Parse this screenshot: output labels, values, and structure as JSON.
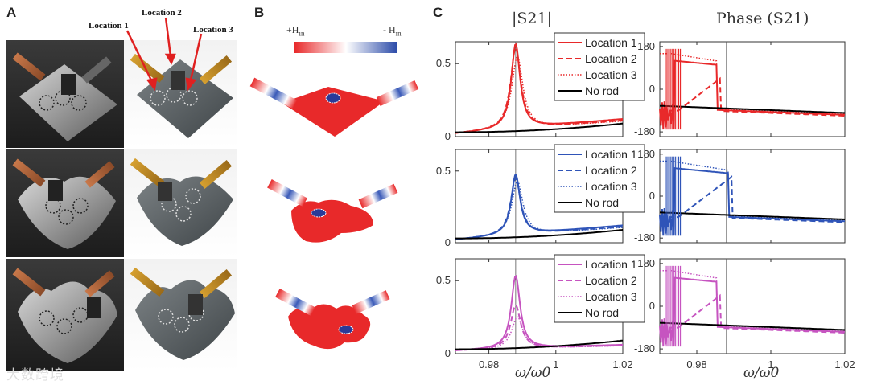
{
  "panels": {
    "a": "A",
    "b": "B",
    "c": "C"
  },
  "panel_a": {
    "location_labels": [
      "Location 1",
      "Location 2",
      "Location 3"
    ]
  },
  "panel_b": {
    "colorbar_left": "+H",
    "colorbar_left_sub": "in",
    "colorbar_right": "- H",
    "colorbar_right_sub": "in"
  },
  "panel_c": {
    "col_titles": [
      "|S21|",
      "Phase (S21)"
    ],
    "xlabel": "ω/ω0"
  },
  "colors": {
    "red": "#e8292a",
    "blue": "#2f54b8",
    "magenta": "#c654c0",
    "black": "#000000",
    "vline": "#555555"
  },
  "watermark": "大数跨境",
  "chart_data": [
    {
      "type": "line",
      "id": "mag-red",
      "title": "|S21|",
      "legend": [
        "Location 1",
        "Location 2",
        "Location 3",
        "No rod"
      ],
      "xlim": [
        0.97,
        1.02
      ],
      "ylim": [
        0,
        0.65
      ],
      "xticks": [
        0.98,
        1,
        1.02
      ],
      "xtick_labels": [
        "0.98",
        "1",
        "1.02"
      ],
      "yticks": [
        0,
        0.5
      ],
      "ytick_labels": [
        "0",
        "0.5"
      ],
      "vline": 0.988,
      "show_xtick_labels": false
    },
    {
      "type": "line",
      "id": "phase-red",
      "title": "Phase (S21)",
      "xlim": [
        0.97,
        1.02
      ],
      "ylim": [
        -200,
        200
      ],
      "xticks": [
        0.98,
        1,
        1.02
      ],
      "xtick_labels": [
        "0.98",
        "1",
        "1.02"
      ],
      "yticks": [
        -180,
        0,
        180
      ],
      "ytick_labels": [
        "-180",
        "0",
        "180"
      ],
      "vline": 0.988,
      "show_xtick_labels": false
    },
    {
      "type": "line",
      "id": "mag-blue",
      "legend": [
        "Location 1",
        "Location 2",
        "Location 3",
        "No rod"
      ],
      "xlim": [
        0.97,
        1.02
      ],
      "ylim": [
        0,
        0.65
      ],
      "xticks": [
        0.98,
        1,
        1.02
      ],
      "xtick_labels": [
        "0.98",
        "1",
        "1.02"
      ],
      "yticks": [
        0,
        0.5
      ],
      "ytick_labels": [
        "0",
        "0.5"
      ],
      "vline": 0.988,
      "show_xtick_labels": false
    },
    {
      "type": "line",
      "id": "phase-blue",
      "xlim": [
        0.97,
        1.02
      ],
      "ylim": [
        -200,
        200
      ],
      "xticks": [
        0.98,
        1,
        1.02
      ],
      "xtick_labels": [
        "0.98",
        "1",
        "1.02"
      ],
      "yticks": [
        -180,
        0,
        180
      ],
      "ytick_labels": [
        "-180",
        "0",
        "180"
      ],
      "vline": 0.988,
      "show_xtick_labels": false
    },
    {
      "type": "line",
      "id": "mag-magenta",
      "legend": [
        "Location 1",
        "Location 2",
        "Location 3",
        "No rod"
      ],
      "xlim": [
        0.97,
        1.02
      ],
      "ylim": [
        0,
        0.65
      ],
      "xticks": [
        0.98,
        1,
        1.02
      ],
      "xtick_labels": [
        "0.98",
        "1",
        "1.02"
      ],
      "yticks": [
        0,
        0.5
      ],
      "ytick_labels": [
        "0",
        "0.5"
      ],
      "vline": 0.988,
      "show_xtick_labels": true
    },
    {
      "type": "line",
      "id": "phase-magenta",
      "xlim": [
        0.97,
        1.02
      ],
      "ylim": [
        -200,
        200
      ],
      "xticks": [
        0.98,
        1,
        1.02
      ],
      "xtick_labels": [
        "0.98",
        "1",
        "1.02"
      ],
      "yticks": [
        -180,
        0,
        180
      ],
      "ytick_labels": [
        "-180",
        "0",
        "180"
      ],
      "vline": 0.988,
      "show_xtick_labels": true
    }
  ]
}
